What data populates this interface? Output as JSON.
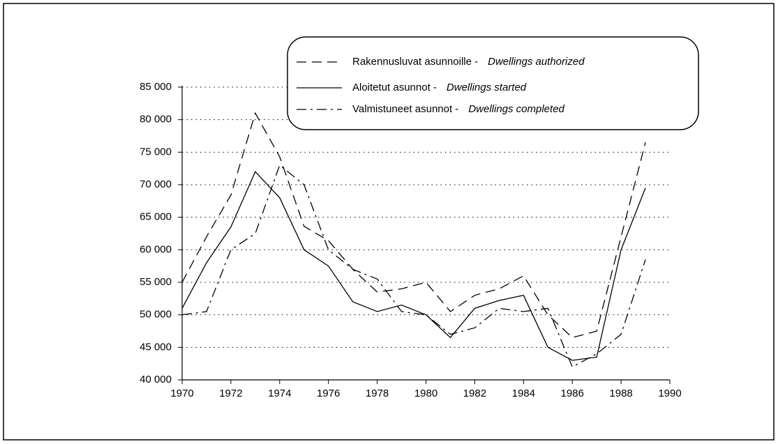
{
  "chart_data": {
    "type": "line",
    "x": [
      1970,
      1971,
      1972,
      1973,
      1974,
      1975,
      1976,
      1977,
      1978,
      1979,
      1980,
      1981,
      1982,
      1983,
      1984,
      1985,
      1986,
      1987,
      1988,
      1989
    ],
    "series": [
      {
        "name": "Rakennusluvat asunnoille -",
        "name_en": "Dwellings authorized",
        "color": "#000000",
        "dash": "dashed",
        "values": [
          55000,
          62000,
          68400,
          81000,
          74300,
          63600,
          61400,
          57000,
          53500,
          54000,
          55000,
          50500,
          53000,
          54000,
          56000,
          50000,
          46500,
          47500,
          62000,
          76500
        ]
      },
      {
        "name": "Aloitetut asunnot -",
        "name_en": "Dwellings started",
        "color": "#000000",
        "dash": "solid",
        "values": [
          51000,
          58000,
          63500,
          72000,
          68000,
          60000,
          57500,
          52000,
          50500,
          51500,
          50000,
          46500,
          51000,
          52200,
          53000,
          45000,
          43000,
          43500,
          60000,
          69500
        ]
      },
      {
        "name": "Valmistuneet asunnot -",
        "name_en": "Dwellings completed",
        "color": "#000000",
        "dash": "dashdot",
        "values": [
          50000,
          50500,
          60000,
          62500,
          73000,
          70000,
          60000,
          57000,
          55500,
          50500,
          50000,
          47000,
          48000,
          51000,
          50500,
          51000,
          42000,
          44000,
          47000,
          58500
        ]
      }
    ],
    "xlim": [
      1970,
      1990
    ],
    "xticks": [
      1970,
      1972,
      1974,
      1976,
      1978,
      1980,
      1982,
      1984,
      1986,
      1988,
      1990
    ],
    "ylim": [
      40000,
      85000
    ],
    "yticks": [
      {
        "value": 40000,
        "label": "40 000"
      },
      {
        "value": 45000,
        "label": "45 000"
      },
      {
        "value": 50000,
        "label": "50 000"
      },
      {
        "value": 55000,
        "label": "55 000"
      },
      {
        "value": 60000,
        "label": "60 000"
      },
      {
        "value": 65000,
        "label": "65 000"
      },
      {
        "value": 70000,
        "label": "70 000"
      },
      {
        "value": 75000,
        "label": "75 000"
      },
      {
        "value": 80000,
        "label": "80 000"
      },
      {
        "value": 85000,
        "label": "85 000"
      }
    ],
    "grid": true
  }
}
